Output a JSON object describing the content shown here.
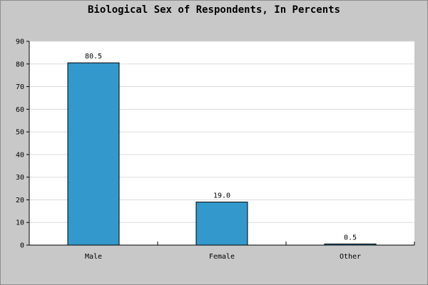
{
  "chart_data": {
    "type": "bar",
    "title": "Biological Sex of Respondents, In Percents",
    "xlabel": "",
    "ylabel": "",
    "categories": [
      "Male",
      "Female",
      "Other"
    ],
    "values": [
      80.5,
      19.0,
      0.5
    ],
    "data_labels": [
      "80.5",
      "19.0",
      "0.5"
    ],
    "ylim": [
      0,
      90
    ],
    "yticks": [
      0,
      10,
      20,
      30,
      40,
      50,
      60,
      70,
      80,
      90
    ],
    "grid": true,
    "legend": "none",
    "bar_color": "#3399cc",
    "plot_background": "#ffffff",
    "frame_background": "#c8c8c8"
  }
}
